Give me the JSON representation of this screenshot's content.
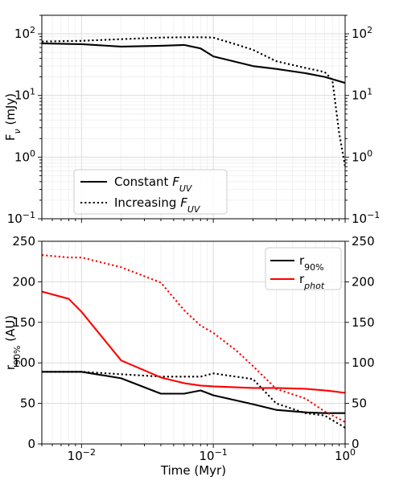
{
  "chart_data": [
    {
      "type": "line",
      "xlabel": "",
      "ylabel": "F_ν (mJy)",
      "xscale": "log",
      "yscale": "log",
      "xlim": [
        0.005,
        1.0
      ],
      "ylim": [
        0.1,
        200
      ],
      "grid": true,
      "right_axis_ticks": true,
      "legend_placement": "lower-left",
      "yticks": [
        {
          "value": 0.1,
          "base": "10",
          "exp": "−1"
        },
        {
          "value": 1,
          "base": "10",
          "exp": "0"
        },
        {
          "value": 10,
          "base": "10",
          "exp": "1"
        },
        {
          "value": 100,
          "base": "10",
          "exp": "2"
        }
      ],
      "series": [
        {
          "name": "Constant F_UV",
          "color": "#000000",
          "style": "solid",
          "x": [
            0.005,
            0.01,
            0.02,
            0.04,
            0.06,
            0.08,
            0.1,
            0.2,
            0.3,
            0.5,
            0.7,
            1.0
          ],
          "y": [
            70,
            68,
            62,
            64,
            66,
            58,
            43,
            30,
            27,
            23,
            20,
            16
          ]
        },
        {
          "name": "Increasing F_UV",
          "color": "#000000",
          "style": "dotted",
          "x": [
            0.005,
            0.01,
            0.02,
            0.04,
            0.06,
            0.08,
            0.1,
            0.15,
            0.2,
            0.3,
            0.5,
            0.7,
            0.8,
            0.9,
            1.0
          ],
          "y": [
            75,
            77,
            82,
            87,
            88,
            88,
            87,
            67,
            55,
            36,
            28,
            24,
            18,
            2.5,
            0.7
          ]
        }
      ],
      "legend": [
        {
          "label": "Constant ",
          "sub": "UV",
          "style": "solid"
        },
        {
          "label": "Increasing ",
          "sub": "UV",
          "style": "dotted"
        }
      ],
      "legend_italic": "F"
    },
    {
      "type": "line",
      "xlabel": "Time (Myr)",
      "ylabel": "r",
      "ylabel_sub": "90%",
      "ylabel_tail": " (AU)",
      "xscale": "log",
      "yscale": "linear",
      "xlim": [
        0.005,
        1.0
      ],
      "ylim": [
        0,
        250
      ],
      "grid": true,
      "right_axis_ticks": true,
      "legend_placement": "top-right",
      "xticks": [
        {
          "value": 0.01,
          "base": "10",
          "exp": "−2"
        },
        {
          "value": 0.1,
          "base": "10",
          "exp": "−1"
        },
        {
          "value": 1,
          "base": "10",
          "exp": "0"
        }
      ],
      "yticks": [
        0,
        50,
        100,
        150,
        200,
        250
      ],
      "series": [
        {
          "name": "r_90% constant",
          "color": "#000000",
          "style": "solid",
          "x": [
            0.005,
            0.01,
            0.02,
            0.04,
            0.06,
            0.08,
            0.1,
            0.2,
            0.3,
            0.5,
            0.7,
            1.0
          ],
          "y": [
            89,
            89,
            81,
            62,
            62,
            66,
            60,
            49,
            42,
            39,
            38,
            38
          ]
        },
        {
          "name": "r_90% increasing",
          "color": "#000000",
          "style": "dotted",
          "x": [
            0.005,
            0.01,
            0.02,
            0.04,
            0.06,
            0.08,
            0.1,
            0.2,
            0.3,
            0.5,
            0.7,
            1.0
          ],
          "y": [
            89,
            89,
            86,
            83,
            83,
            83,
            87,
            80,
            50,
            38,
            35,
            20
          ]
        },
        {
          "name": "r_phot constant",
          "color": "#ff0000",
          "style": "solid",
          "x": [
            0.005,
            0.008,
            0.01,
            0.02,
            0.04,
            0.06,
            0.08,
            0.1,
            0.2,
            0.3,
            0.5,
            0.7,
            0.8,
            1.0
          ],
          "y": [
            188,
            179,
            163,
            103,
            82,
            75,
            72,
            71,
            69,
            69,
            68,
            66,
            65,
            63
          ]
        },
        {
          "name": "r_phot increasing",
          "color": "#ff0000",
          "style": "dotted",
          "x": [
            0.005,
            0.008,
            0.01,
            0.02,
            0.04,
            0.06,
            0.08,
            0.1,
            0.15,
            0.2,
            0.3,
            0.5,
            0.7,
            1.0
          ],
          "y": [
            233,
            230,
            230,
            218,
            199,
            165,
            146,
            137,
            115,
            96,
            68,
            56,
            40,
            27
          ]
        }
      ],
      "legend": [
        {
          "label": "r",
          "sub": "90%",
          "color": "#000000"
        },
        {
          "label": "r",
          "sub": "phot",
          "color": "#ff0000"
        }
      ]
    }
  ]
}
